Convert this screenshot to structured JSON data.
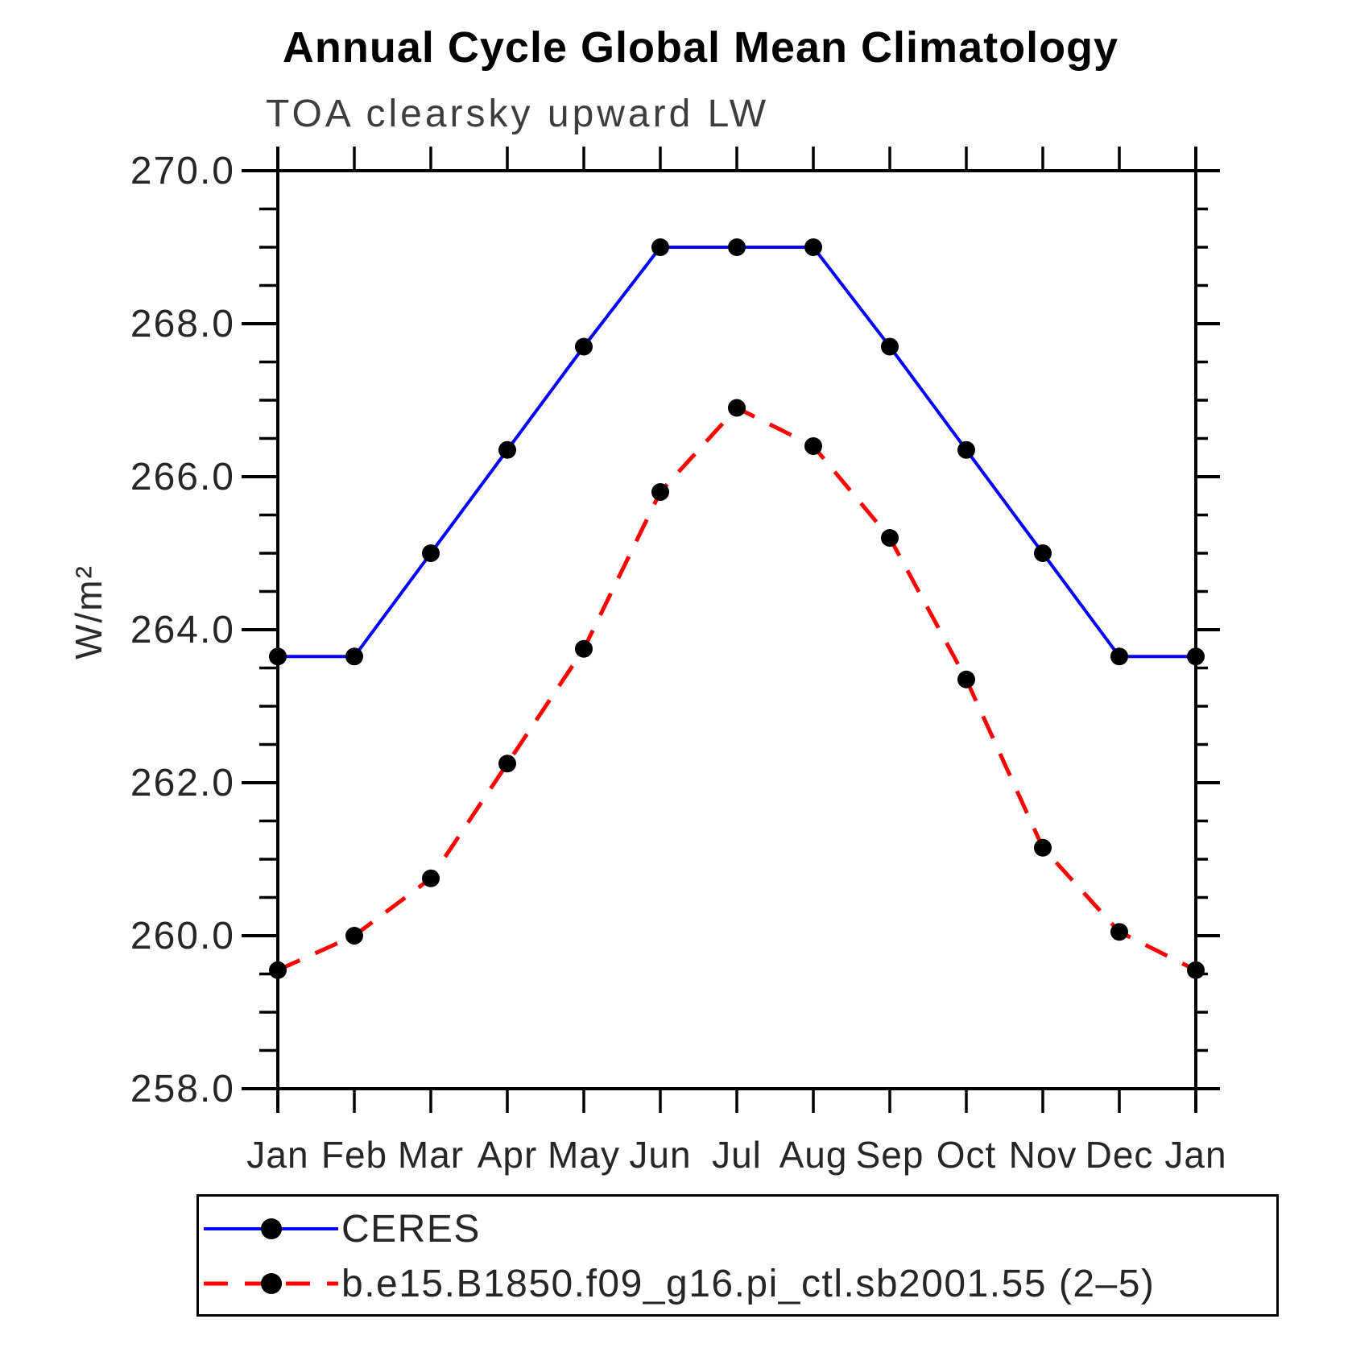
{
  "title": "Annual Cycle Global Mean Climatology",
  "subtitle": "TOA clearsky upward LW",
  "chart_data": {
    "type": "line",
    "categories": [
      "Jan",
      "Feb",
      "Mar",
      "Apr",
      "May",
      "Jun",
      "Jul",
      "Aug",
      "Sep",
      "Oct",
      "Nov",
      "Dec",
      "Jan"
    ],
    "ylabel": "W/m²",
    "ylim": [
      258.0,
      270.0
    ],
    "ytick_major_step": 2.0,
    "ytick_minor_step": 0.5,
    "ytick_labels": [
      "258.0",
      "260.0",
      "262.0",
      "264.0",
      "266.0",
      "268.0",
      "270.0"
    ],
    "grid": false,
    "legend_position": "boxed-below-plot",
    "series": [
      {
        "name": "CERES",
        "color": "#0000ff",
        "line_style": "solid",
        "marker": "filled-circle",
        "marker_color": "#000000",
        "values": [
          263.65,
          263.65,
          265.0,
          266.35,
          267.7,
          269.0,
          269.0,
          269.0,
          267.7,
          266.35,
          265.0,
          263.65,
          263.65
        ]
      },
      {
        "name": "b.e15.B1850.f09_g16.pi_ctl.sb2001.55 (2–5)",
        "color": "#ff0000",
        "line_style": "dashed",
        "marker": "filled-circle",
        "marker_color": "#000000",
        "values": [
          259.55,
          260.0,
          260.75,
          262.25,
          263.75,
          265.8,
          266.9,
          266.4,
          265.2,
          263.35,
          261.15,
          260.05,
          259.55
        ]
      }
    ]
  },
  "colors": {
    "background": "#ffffff",
    "axis": "#000000",
    "tick_labels": "#262626",
    "title": "#000000",
    "subtitle": "#3d3d3d"
  }
}
